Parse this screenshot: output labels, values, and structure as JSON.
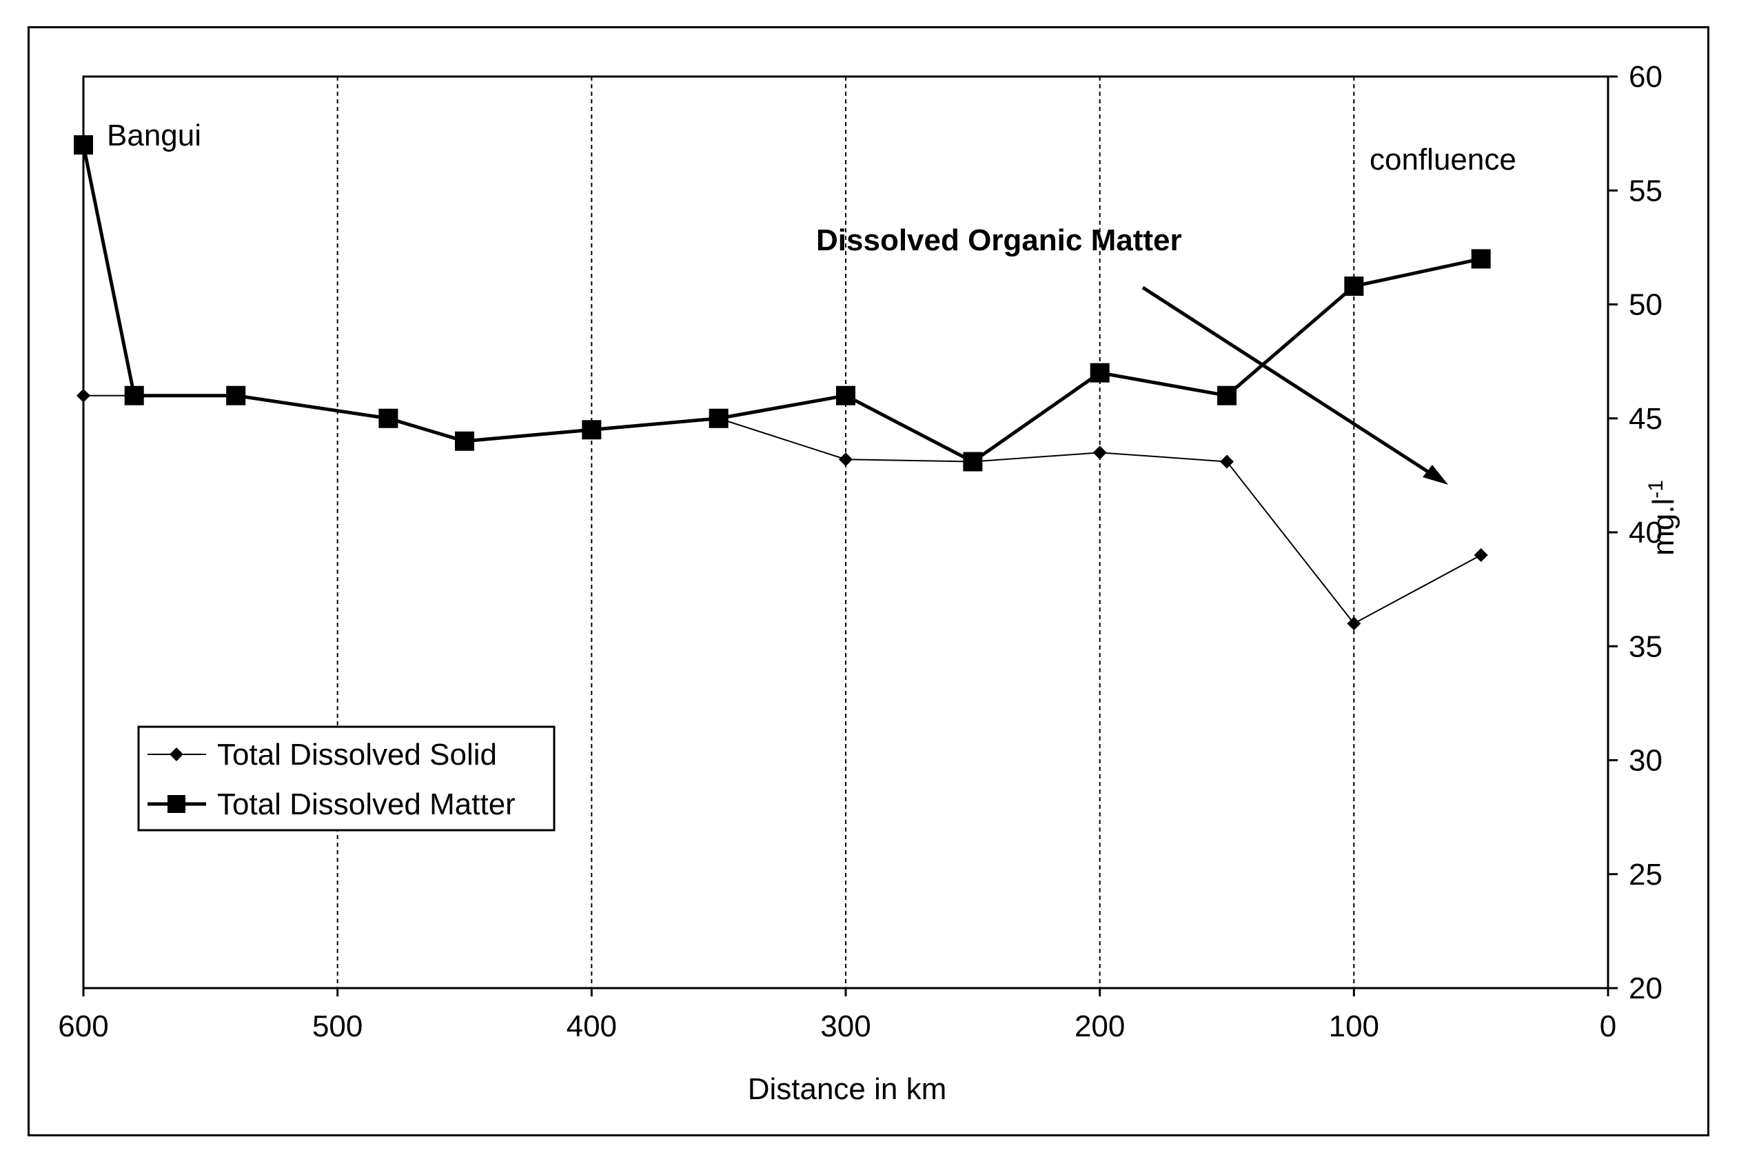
{
  "chart_data": {
    "type": "line",
    "title": "",
    "xlabel": "Distance in km",
    "ylabel": "mg.l-1",
    "ylabel_main": "mg.l",
    "ylabel_sup": "-1",
    "xlim": [
      600,
      0
    ],
    "ylim": [
      20,
      60
    ],
    "x_reversed": true,
    "y_axis_side": "right",
    "x_ticks": [
      "600",
      "500",
      "400",
      "300",
      "200",
      "100",
      "0"
    ],
    "y_ticks": [
      "20",
      "25",
      "30",
      "35",
      "40",
      "45",
      "50",
      "55",
      "60"
    ],
    "vertical_gridlines": "dashed at every 100 km",
    "legend_position": "bottom-left",
    "series": [
      {
        "name": "Total Dissolved Solid",
        "marker": "diamond",
        "x": [
          600,
          580,
          540,
          480,
          450,
          400,
          350,
          300,
          250,
          200,
          150,
          100,
          50
        ],
        "y": [
          46,
          46,
          46,
          45,
          44,
          44.5,
          45,
          43.2,
          43.1,
          43.5,
          43.1,
          36,
          39
        ]
      },
      {
        "name": "Total Dissolved Matter",
        "marker": "square",
        "x": [
          600,
          580,
          540,
          480,
          450,
          400,
          350,
          300,
          250,
          200,
          150,
          100,
          50
        ],
        "y": [
          57,
          46,
          46,
          45,
          44,
          44.5,
          45,
          46,
          43.1,
          47,
          46,
          50.8,
          52
        ]
      }
    ],
    "annotations": {
      "bangui": "Bangui",
      "confluence": "confluence",
      "dom_label": "Dissolved Organic Matter"
    }
  }
}
